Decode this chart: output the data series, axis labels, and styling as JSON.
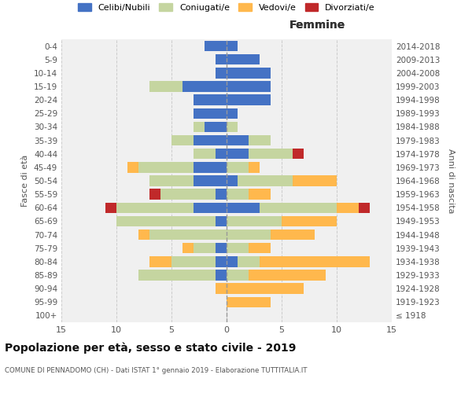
{
  "age_groups": [
    "100+",
    "95-99",
    "90-94",
    "85-89",
    "80-84",
    "75-79",
    "70-74",
    "65-69",
    "60-64",
    "55-59",
    "50-54",
    "45-49",
    "40-44",
    "35-39",
    "30-34",
    "25-29",
    "20-24",
    "15-19",
    "10-14",
    "5-9",
    "0-4"
  ],
  "birth_years": [
    "≤ 1918",
    "1919-1923",
    "1924-1928",
    "1929-1933",
    "1934-1938",
    "1939-1943",
    "1944-1948",
    "1949-1953",
    "1954-1958",
    "1959-1963",
    "1964-1968",
    "1969-1973",
    "1974-1978",
    "1979-1983",
    "1984-1988",
    "1989-1993",
    "1994-1998",
    "1999-2003",
    "2004-2008",
    "2009-2013",
    "2014-2018"
  ],
  "male": {
    "celibi": [
      0,
      0,
      0,
      1,
      1,
      1,
      0,
      1,
      3,
      1,
      3,
      3,
      1,
      3,
      2,
      3,
      3,
      4,
      1,
      1,
      2
    ],
    "coniugati": [
      0,
      0,
      0,
      7,
      4,
      2,
      7,
      9,
      7,
      5,
      4,
      5,
      2,
      2,
      1,
      0,
      0,
      3,
      0,
      0,
      0
    ],
    "vedovi": [
      0,
      0,
      1,
      0,
      2,
      1,
      1,
      0,
      0,
      0,
      0,
      1,
      0,
      0,
      0,
      0,
      0,
      0,
      0,
      0,
      0
    ],
    "divorziati": [
      0,
      0,
      0,
      0,
      0,
      0,
      0,
      0,
      1,
      1,
      0,
      0,
      0,
      0,
      0,
      0,
      0,
      0,
      0,
      0,
      0
    ]
  },
  "female": {
    "nubili": [
      0,
      0,
      0,
      0,
      1,
      0,
      0,
      0,
      3,
      0,
      1,
      0,
      2,
      2,
      0,
      1,
      4,
      4,
      4,
      3,
      1
    ],
    "coniugate": [
      0,
      0,
      0,
      2,
      2,
      2,
      4,
      5,
      7,
      2,
      5,
      2,
      4,
      2,
      1,
      0,
      0,
      0,
      0,
      0,
      0
    ],
    "vedove": [
      0,
      4,
      7,
      7,
      10,
      2,
      4,
      5,
      2,
      2,
      4,
      1,
      0,
      0,
      0,
      0,
      0,
      0,
      0,
      0,
      0
    ],
    "divorziate": [
      0,
      0,
      0,
      0,
      0,
      0,
      0,
      0,
      1,
      0,
      0,
      0,
      1,
      0,
      0,
      0,
      0,
      0,
      0,
      0,
      0
    ]
  },
  "colors": {
    "celibi": "#4472C4",
    "coniugati": "#C5D5A0",
    "vedovi": "#FFB84D",
    "divorziati": "#C0292A"
  },
  "xlim": 15,
  "title": "Popolazione per età, sesso e stato civile - 2019",
  "subtitle": "COMUNE DI PENNADOMO (CH) - Dati ISTAT 1° gennaio 2019 - Elaborazione TUTTITALIA.IT",
  "ylabel_left": "Fasce di età",
  "ylabel_right": "Anni di nascita",
  "legend_labels": [
    "Celibi/Nubili",
    "Coniugati/e",
    "Vedovi/e",
    "Divorziati/e"
  ],
  "legend_colors": [
    "#4472C4",
    "#C5D5A0",
    "#FFB84D",
    "#C0292A"
  ],
  "bg_color": "#f0f0f0",
  "grid_color": "#cccccc"
}
